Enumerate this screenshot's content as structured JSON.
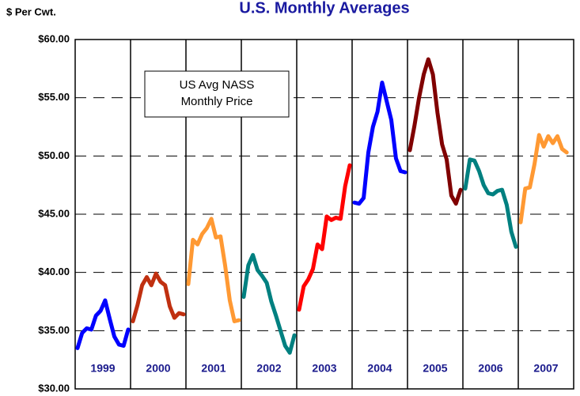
{
  "chart_data": {
    "type": "line",
    "title": "U.S. Monthly Averages",
    "y_label": "$ Per Cwt.",
    "annotation": [
      "US Avg NASS",
      "Monthly Price"
    ],
    "ylim": [
      30,
      60
    ],
    "yticks": [
      {
        "value": 30,
        "label": "$30.00"
      },
      {
        "value": 35,
        "label": "$35.00"
      },
      {
        "value": 40,
        "label": "$40.00"
      },
      {
        "value": 45,
        "label": "$45.00"
      },
      {
        "value": 50,
        "label": "$50.00"
      },
      {
        "value": 55,
        "label": "$55.00"
      },
      {
        "value": 60,
        "label": "$60.00"
      }
    ],
    "grid": true,
    "series": [
      {
        "name": "1999",
        "color": "#0000ff",
        "values": [
          33.5,
          34.8,
          35.2,
          35.1,
          36.3,
          36.7,
          37.6,
          36.0,
          34.5,
          33.8,
          33.7,
          35.1
        ]
      },
      {
        "name": "2000",
        "color": "#c03010",
        "values": [
          35.8,
          37.2,
          38.9,
          39.6,
          38.9,
          39.9,
          39.2,
          38.9,
          37.1,
          36.1,
          36.5,
          36.4
        ]
      },
      {
        "name": "2001",
        "color": "#ff9933",
        "values": [
          39.0,
          42.8,
          42.4,
          43.3,
          43.8,
          44.6,
          43.0,
          43.1,
          40.6,
          37.6,
          35.8,
          35.9
        ]
      },
      {
        "name": "2002",
        "color": "#008080",
        "values": [
          37.9,
          40.6,
          41.5,
          40.2,
          39.7,
          39.1,
          37.5,
          36.3,
          35.0,
          33.7,
          33.1,
          34.6
        ]
      },
      {
        "name": "2003",
        "color": "#ff0000",
        "values": [
          36.8,
          38.8,
          39.4,
          40.3,
          42.4,
          42.0,
          44.8,
          44.5,
          44.7,
          44.6,
          47.4,
          49.2
        ]
      },
      {
        "name": "2004",
        "color": "#0000ff",
        "values": [
          46.0,
          45.9,
          46.4,
          50.3,
          52.5,
          53.8,
          56.3,
          54.7,
          53.1,
          49.8,
          48.7,
          48.6
        ]
      },
      {
        "name": "2005",
        "color": "#800000",
        "values": [
          50.5,
          52.6,
          55.0,
          57.0,
          58.3,
          57.0,
          53.7,
          51.0,
          49.7,
          46.6,
          45.9,
          47.1
        ]
      },
      {
        "name": "2006",
        "color": "#008080",
        "values": [
          47.2,
          49.7,
          49.6,
          48.7,
          47.5,
          46.8,
          46.7,
          47.0,
          47.1,
          45.8,
          43.5,
          42.2
        ]
      },
      {
        "name": "2007",
        "color": "#ff9933",
        "values": [
          44.3,
          47.2,
          47.3,
          49.3,
          51.8,
          50.8,
          51.7,
          51.1,
          51.7,
          50.6,
          50.3
        ]
      }
    ]
  }
}
